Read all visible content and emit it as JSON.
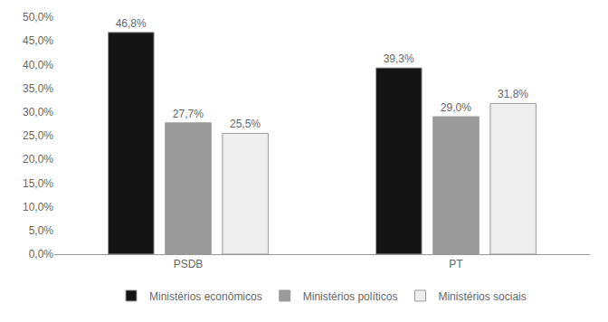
{
  "chart_data": {
    "type": "bar",
    "categories": [
      "PSDB",
      "PT"
    ],
    "series": [
      {
        "name": "Ministérios econômicos",
        "color": "#141414",
        "values": [
          46.8,
          39.3
        ],
        "value_labels": [
          "46,8%",
          "39,3%"
        ]
      },
      {
        "name": "Ministérios políticos",
        "color": "#9a9a9a",
        "values": [
          27.7,
          29.0
        ],
        "value_labels": [
          "27,7%",
          "29,0%"
        ]
      },
      {
        "name": "Ministérios sociais",
        "color": "#eeeeee",
        "values": [
          25.5,
          31.8
        ],
        "value_labels": [
          "25,5%",
          "31,8%"
        ]
      }
    ],
    "ylim": [
      0,
      50
    ],
    "yticks": [
      {
        "value": 0,
        "label": "0,0%"
      },
      {
        "value": 5,
        "label": "5,0%"
      },
      {
        "value": 10,
        "label": "10,0%"
      },
      {
        "value": 15,
        "label": "15,0%"
      },
      {
        "value": 20,
        "label": "20,0%"
      },
      {
        "value": 25,
        "label": "25,0%"
      },
      {
        "value": 30,
        "label": "30,0%"
      },
      {
        "value": 35,
        "label": "35,0%"
      },
      {
        "value": 40,
        "label": "40,0%"
      },
      {
        "value": 45,
        "label": "45,0%"
      },
      {
        "value": 50,
        "label": "50,0%"
      }
    ],
    "grid": false,
    "legend": "bottom",
    "data_labels": true
  }
}
